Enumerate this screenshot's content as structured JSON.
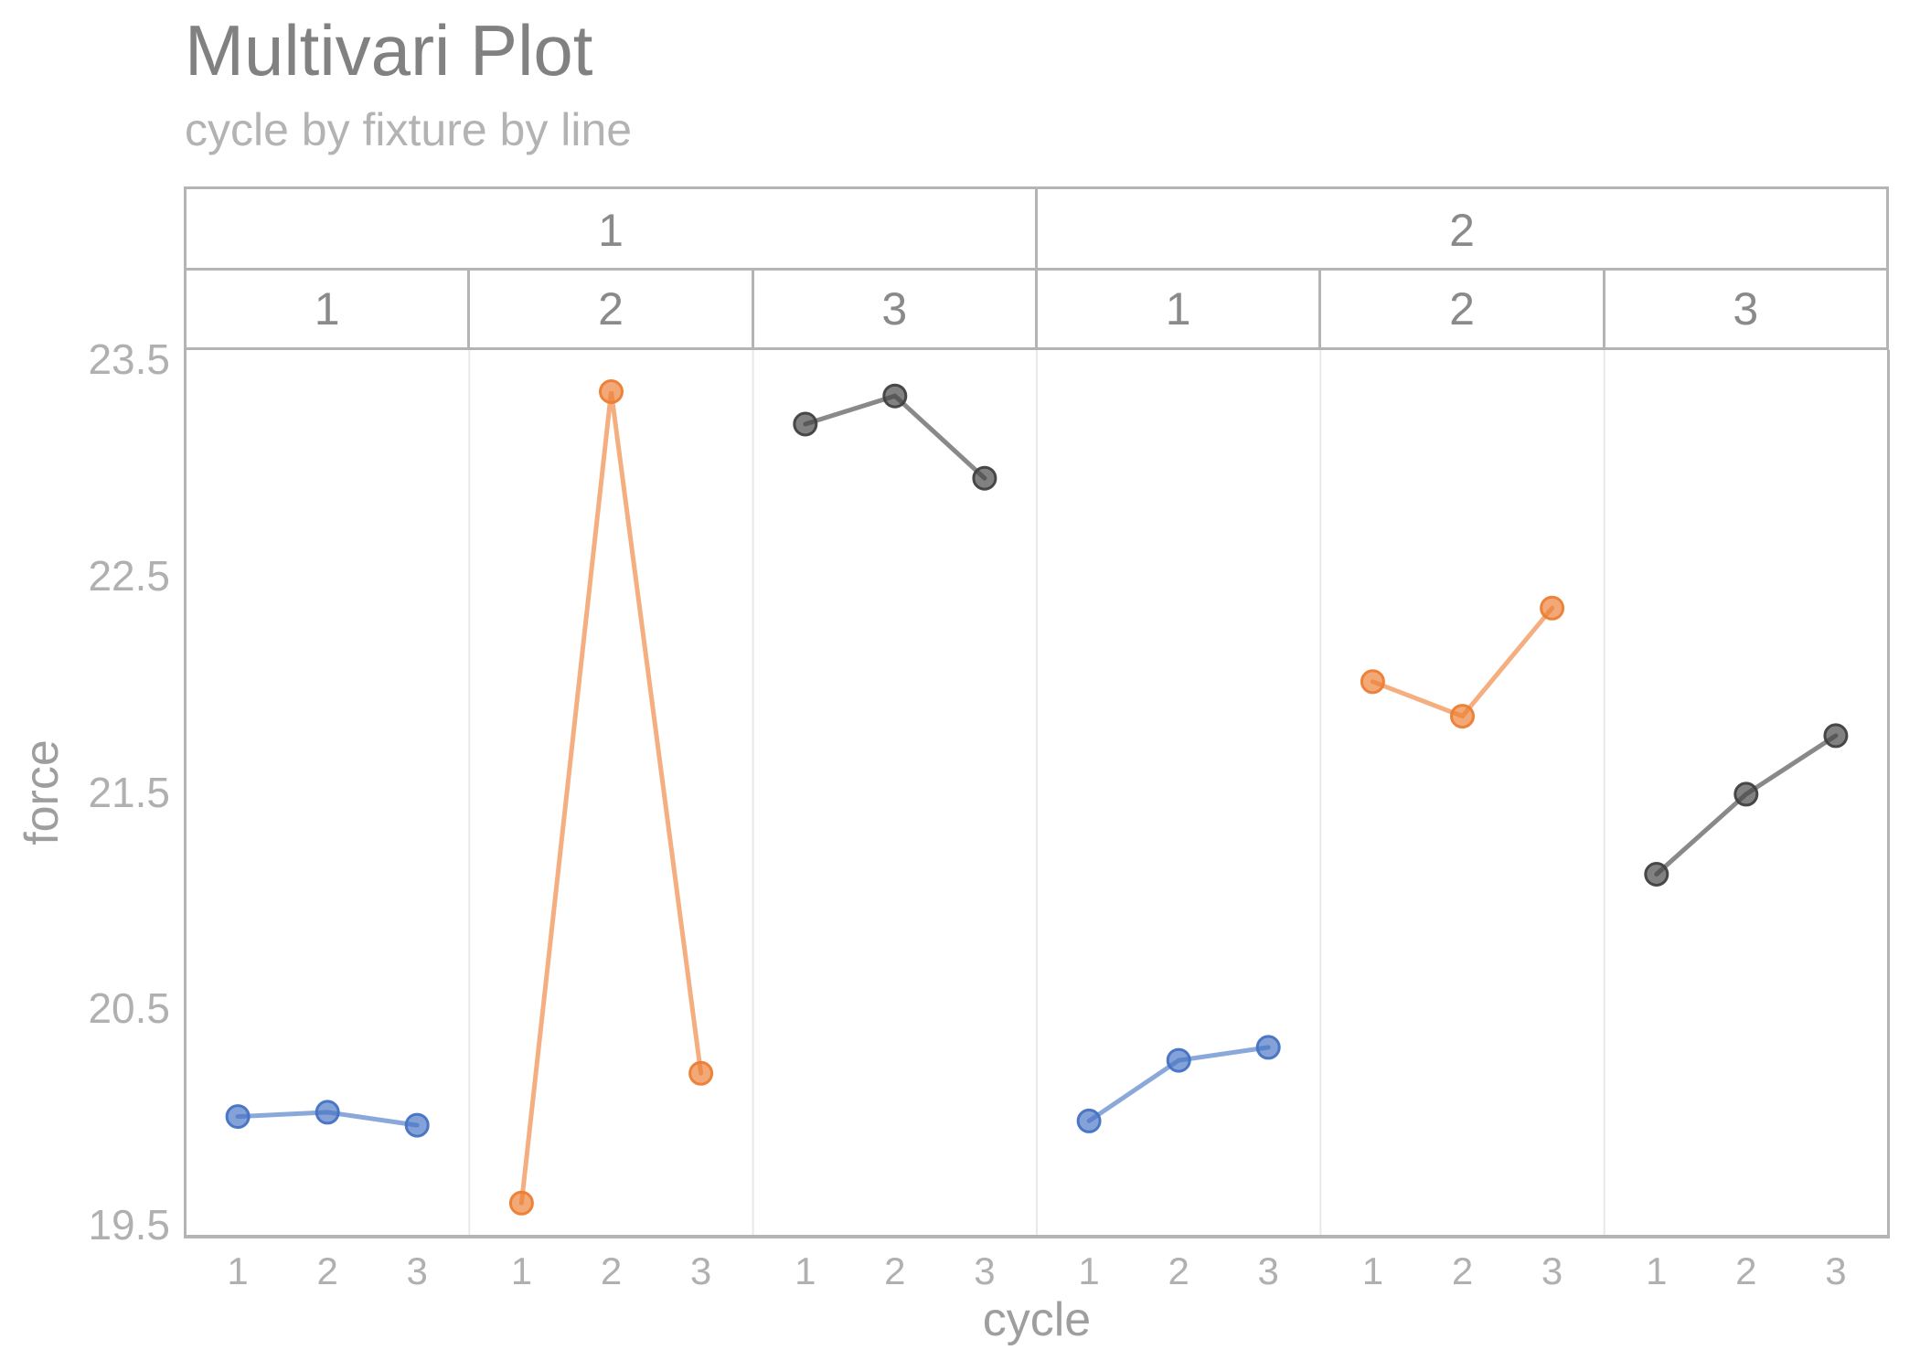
{
  "title": "Multivari Plot",
  "subtitle": "cycle by fixture by line",
  "chart_data": {
    "type": "line",
    "title": "Multivari Plot",
    "subtitle": "cycle by fixture by line",
    "xlabel": "cycle",
    "ylabel": "force",
    "ylim": [
      19.5,
      23.5
    ],
    "y_ticks": [
      23.5,
      22.5,
      21.5,
      20.5,
      19.5
    ],
    "x_ticks": [
      "1",
      "2",
      "3"
    ],
    "grid": "none",
    "legend": "none",
    "facet_structure": "outer facet 'line' (2 levels) by inner facet 'fixture' (3 levels)",
    "facets": {
      "outer": [
        "1",
        "2"
      ],
      "inner": [
        "1",
        "2",
        "3",
        "1",
        "2",
        "3"
      ]
    },
    "colors": {
      "fixture_1_blue": "#4472C4",
      "fixture_2_orange": "#ED7D31",
      "fixture_3_dark": "#404040",
      "axis_border": "#b4b4b4",
      "panel_divider": "#e8e8e8",
      "tick_text": "#b0b0b0",
      "title_text": "#818181"
    },
    "series": [
      {
        "panel": 1,
        "line": "1",
        "fixture": "1",
        "color": "#4472C4",
        "x": [
          1,
          2,
          3
        ],
        "values": [
          20.0,
          20.02,
          19.96
        ]
      },
      {
        "panel": 2,
        "line": "1",
        "fixture": "2",
        "color": "#ED7D31",
        "x": [
          1,
          2,
          3
        ],
        "values": [
          19.6,
          23.35,
          20.2
        ]
      },
      {
        "panel": 3,
        "line": "1",
        "fixture": "3",
        "color": "#404040",
        "x": [
          1,
          2,
          3
        ],
        "values": [
          23.2,
          23.33,
          22.95
        ]
      },
      {
        "panel": 4,
        "line": "2",
        "fixture": "1",
        "color": "#4472C4",
        "x": [
          1,
          2,
          3
        ],
        "values": [
          19.98,
          20.26,
          20.32
        ]
      },
      {
        "panel": 5,
        "line": "2",
        "fixture": "2",
        "color": "#ED7D31",
        "x": [
          1,
          2,
          3
        ],
        "values": [
          22.01,
          21.85,
          22.35
        ]
      },
      {
        "panel": 6,
        "line": "2",
        "fixture": "3",
        "color": "#404040",
        "x": [
          1,
          2,
          3
        ],
        "values": [
          21.12,
          21.49,
          21.76
        ]
      }
    ]
  }
}
